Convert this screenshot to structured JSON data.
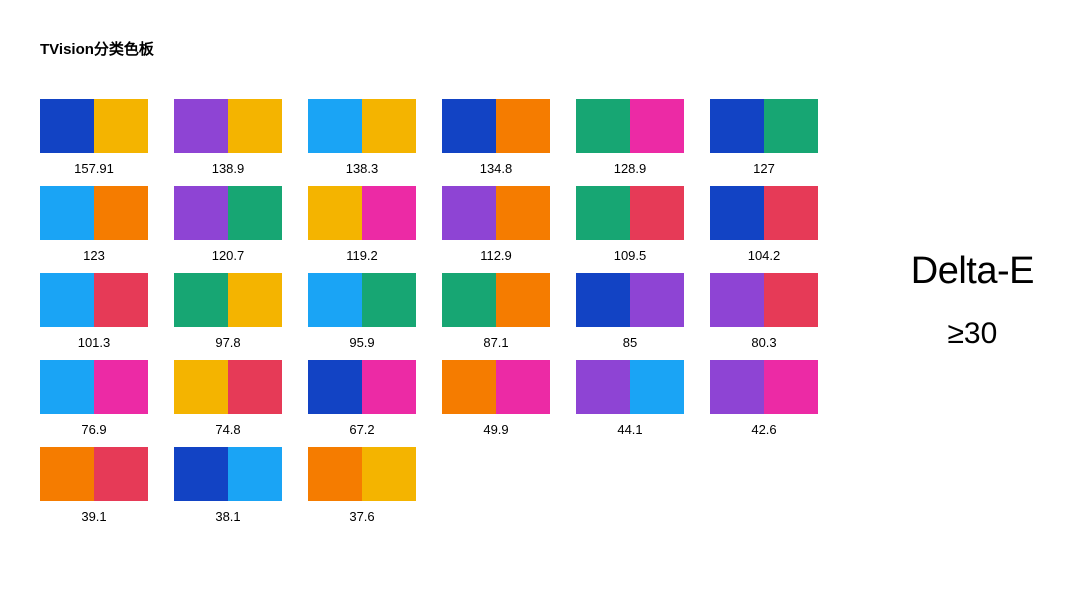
{
  "title": "TVision分类色板",
  "annotation": {
    "title": "Delta-E",
    "value": "≥30"
  },
  "swatch_width": 108,
  "swatch_height": 54,
  "label_fontsize": 13,
  "title_fontsize": 15,
  "annotation_title_fontsize": 38,
  "annotation_value_fontsize": 30,
  "background_color": "#ffffff",
  "text_color": "#000000",
  "columns": 6,
  "swatches": [
    {
      "left": "#1243c4",
      "right": "#f4b400",
      "value": "157.91"
    },
    {
      "left": "#8e44d4",
      "right": "#f4b400",
      "value": "138.9"
    },
    {
      "left": "#1aa4f5",
      "right": "#f4b400",
      "value": "138.3"
    },
    {
      "left": "#1243c4",
      "right": "#f57c00",
      "value": "134.8"
    },
    {
      "left": "#17a673",
      "right": "#ec2aa5",
      "value": "128.9"
    },
    {
      "left": "#1243c4",
      "right": "#17a673",
      "value": "127"
    },
    {
      "left": "#1aa4f5",
      "right": "#f57c00",
      "value": "123"
    },
    {
      "left": "#8e44d4",
      "right": "#17a673",
      "value": "120.7"
    },
    {
      "left": "#f4b400",
      "right": "#ec2aa5",
      "value": "119.2"
    },
    {
      "left": "#8e44d4",
      "right": "#f57c00",
      "value": "112.9"
    },
    {
      "left": "#17a673",
      "right": "#e63a57",
      "value": "109.5"
    },
    {
      "left": "#1243c4",
      "right": "#e63a57",
      "value": "104.2"
    },
    {
      "left": "#1aa4f5",
      "right": "#e63a57",
      "value": "101.3"
    },
    {
      "left": "#17a673",
      "right": "#f4b400",
      "value": "97.8"
    },
    {
      "left": "#1aa4f5",
      "right": "#17a673",
      "value": "95.9"
    },
    {
      "left": "#17a673",
      "right": "#f57c00",
      "value": "87.1"
    },
    {
      "left": "#1243c4",
      "right": "#8e44d4",
      "value": "85"
    },
    {
      "left": "#8e44d4",
      "right": "#e63a57",
      "value": "80.3"
    },
    {
      "left": "#1aa4f5",
      "right": "#ec2aa5",
      "value": "76.9"
    },
    {
      "left": "#f4b400",
      "right": "#e63a57",
      "value": "74.8"
    },
    {
      "left": "#1243c4",
      "right": "#ec2aa5",
      "value": "67.2"
    },
    {
      "left": "#f57c00",
      "right": "#ec2aa5",
      "value": "49.9"
    },
    {
      "left": "#8e44d4",
      "right": "#1aa4f5",
      "value": "44.1"
    },
    {
      "left": "#8e44d4",
      "right": "#ec2aa5",
      "value": "42.6"
    },
    {
      "left": "#f57c00",
      "right": "#e63a57",
      "value": "39.1"
    },
    {
      "left": "#1243c4",
      "right": "#1aa4f5",
      "value": "38.1"
    },
    {
      "left": "#f57c00",
      "right": "#f4b400",
      "value": "37.6"
    }
  ]
}
